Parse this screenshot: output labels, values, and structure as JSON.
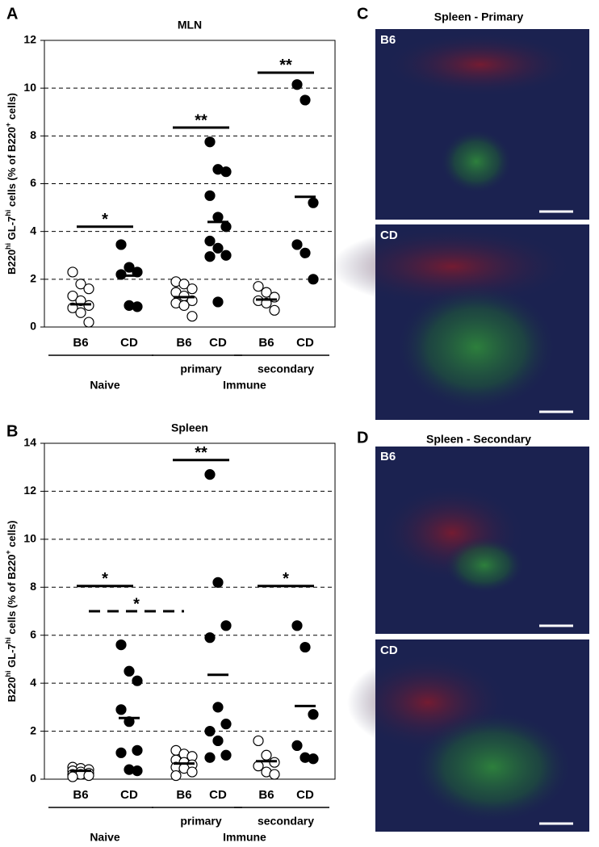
{
  "chart_data": [
    {
      "type": "dot",
      "title": "MLN",
      "y_label": [
        {
          "text": "B220"
        },
        {
          "text": "hi",
          "sup": true
        },
        {
          "text": " GL-7"
        },
        {
          "text": "hi",
          "sup": true
        },
        {
          "text": " cells (% of B220"
        },
        {
          "text": "+",
          "sup": true
        },
        {
          "text": " cells)"
        }
      ],
      "ylim": [
        0,
        12
      ],
      "yticks": [
        0,
        2,
        4,
        6,
        8,
        10,
        12
      ],
      "grid": true,
      "supergroup": "Immune",
      "groups": [
        {
          "name": "Naive",
          "categories": [
            {
              "name": "B6",
              "fill": "#ffffff",
              "values": [
                2.3,
                1.8,
                1.6,
                1.3,
                1.1,
                0.9,
                0.8,
                0.6,
                0.2
              ],
              "mean": 0.95
            },
            {
              "name": "CD",
              "fill": "#000000",
              "values": [
                3.45,
                2.5,
                2.3,
                2.2,
                0.9,
                0.85
              ],
              "mean": 2.15
            }
          ],
          "significance": [
            {
              "label": "*",
              "value": 4.2,
              "style": "solid"
            }
          ]
        },
        {
          "name": "primary",
          "categories": [
            {
              "name": "B6",
              "fill": "#ffffff",
              "values": [
                1.9,
                1.8,
                1.6,
                1.45,
                1.3,
                1.1,
                1.0,
                0.9,
                0.45
              ],
              "mean": 1.25
            },
            {
              "name": "CD",
              "fill": "#000000",
              "values": [
                7.75,
                6.6,
                6.5,
                5.5,
                4.6,
                4.2,
                3.6,
                3.3,
                3.0,
                2.95,
                1.05
              ],
              "mean": 4.4
            }
          ],
          "significance": [
            {
              "label": "**",
              "value": 8.35,
              "style": "solid"
            }
          ]
        },
        {
          "name": "secondary",
          "categories": [
            {
              "name": "B6",
              "fill": "#ffffff",
              "values": [
                1.7,
                1.45,
                1.25,
                1.1,
                1.0,
                0.7
              ],
              "mean": 1.15
            },
            {
              "name": "CD",
              "fill": "#000000",
              "values": [
                10.15,
                9.5,
                5.2,
                3.45,
                3.1,
                2.0
              ],
              "mean": 5.45
            }
          ],
          "significance": [
            {
              "label": "**",
              "value": 10.65,
              "style": "solid"
            }
          ]
        }
      ]
    },
    {
      "type": "dot",
      "title": "Spleen",
      "y_label": [
        {
          "text": "B220"
        },
        {
          "text": "hi",
          "sup": true
        },
        {
          "text": " GL-7"
        },
        {
          "text": "hi",
          "sup": true
        },
        {
          "text": " cells (% of B220"
        },
        {
          "text": "+",
          "sup": true
        },
        {
          "text": " cells)"
        }
      ],
      "ylim": [
        0,
        14
      ],
      "yticks": [
        0,
        2,
        4,
        6,
        8,
        10,
        12,
        14
      ],
      "grid": true,
      "supergroup": "Immune",
      "groups": [
        {
          "name": "Naive",
          "categories": [
            {
              "name": "B6",
              "fill": "#ffffff",
              "values": [
                0.5,
                0.45,
                0.4,
                0.35,
                0.3,
                0.25,
                0.2,
                0.2,
                0.15,
                0.1
              ],
              "mean": 0.35
            },
            {
              "name": "CD",
              "fill": "#000000",
              "values": [
                5.6,
                4.5,
                4.1,
                2.9,
                2.4,
                1.2,
                1.1,
                0.4,
                0.35
              ],
              "mean": 2.55
            }
          ],
          "significance": [
            {
              "label": "*",
              "value": 8.05,
              "style": "solid"
            },
            {
              "label": "*",
              "value": 7.0,
              "style": "dashed"
            }
          ]
        },
        {
          "name": "primary",
          "categories": [
            {
              "name": "B6",
              "fill": "#ffffff",
              "values": [
                1.2,
                1.05,
                0.95,
                0.8,
                0.7,
                0.6,
                0.5,
                0.45,
                0.3,
                0.15
              ],
              "mean": 0.65
            },
            {
              "name": "CD",
              "fill": "#000000",
              "values": [
                12.7,
                8.2,
                6.4,
                5.9,
                3.0,
                2.3,
                2.0,
                1.6,
                1.0,
                0.9
              ],
              "mean": 4.35
            }
          ],
          "significance": [
            {
              "label": "**",
              "value": 13.3,
              "style": "solid"
            }
          ]
        },
        {
          "name": "secondary",
          "categories": [
            {
              "name": "B6",
              "fill": "#ffffff",
              "values": [
                1.6,
                1.0,
                0.7,
                0.55,
                0.3,
                0.2
              ],
              "mean": 0.75
            },
            {
              "name": "CD",
              "fill": "#000000",
              "values": [
                6.4,
                5.5,
                2.7,
                1.4,
                0.9,
                0.85
              ],
              "mean": 3.05
            }
          ],
          "significance": [
            {
              "label": "*",
              "value": 8.05,
              "style": "solid"
            }
          ]
        }
      ]
    }
  ],
  "panel_labels": [
    "A",
    "B",
    "C",
    "D"
  ],
  "images": [
    {
      "title": "Spleen - Primary",
      "panels": [
        "B6",
        "CD"
      ]
    },
    {
      "title": "Spleen - Secondary",
      "panels": [
        "B6",
        "CD"
      ]
    }
  ]
}
